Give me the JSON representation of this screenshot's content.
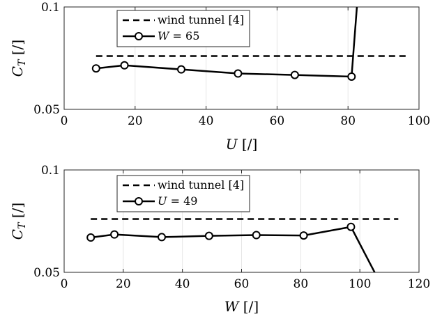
{
  "chart_data": [
    {
      "type": "line",
      "xlabel": "U [/]",
      "ylabel": "C_T [/]",
      "xlim": [
        0,
        100
      ],
      "ylim": [
        0.05,
        0.1
      ],
      "xticks": [
        "0",
        "20",
        "40",
        "60",
        "80",
        "100"
      ],
      "yticks": [
        "0.05",
        "0.1"
      ],
      "grid": true,
      "legend": "top-left",
      "series": [
        {
          "name": "wind tunnel [4]",
          "style": "dashed",
          "x": [
            9,
            97
          ],
          "y": [
            0.076,
            0.076
          ]
        },
        {
          "name": "W = 65",
          "style": "solid-markers",
          "x": [
            9,
            17,
            33,
            49,
            65,
            81
          ],
          "y": [
            0.07,
            0.0715,
            0.0695,
            0.0675,
            0.0668,
            0.066
          ],
          "continuation": {
            "x": [
              81,
              82.5
            ],
            "y": [
              0.066,
              0.1
            ]
          }
        }
      ]
    },
    {
      "type": "line",
      "xlabel": "W [/]",
      "ylabel": "C_T [/]",
      "xlim": [
        0,
        120
      ],
      "ylim": [
        0.05,
        0.1
      ],
      "xticks": [
        "0",
        "20",
        "40",
        "60",
        "80",
        "100",
        "120"
      ],
      "yticks": [
        "0.05",
        "0.1"
      ],
      "grid": true,
      "legend": "top-left",
      "series": [
        {
          "name": "wind tunnel [4]",
          "style": "dashed",
          "x": [
            9,
            113
          ],
          "y": [
            0.076,
            0.076
          ]
        },
        {
          "name": "U = 49",
          "style": "solid-markers",
          "x": [
            9,
            17,
            33,
            49,
            65,
            81,
            97
          ],
          "y": [
            0.067,
            0.0685,
            0.0672,
            0.0678,
            0.0682,
            0.068,
            0.0722
          ],
          "continuation": {
            "x": [
              97,
              105
            ],
            "y": [
              0.0722,
              0.05
            ]
          }
        }
      ]
    }
  ]
}
